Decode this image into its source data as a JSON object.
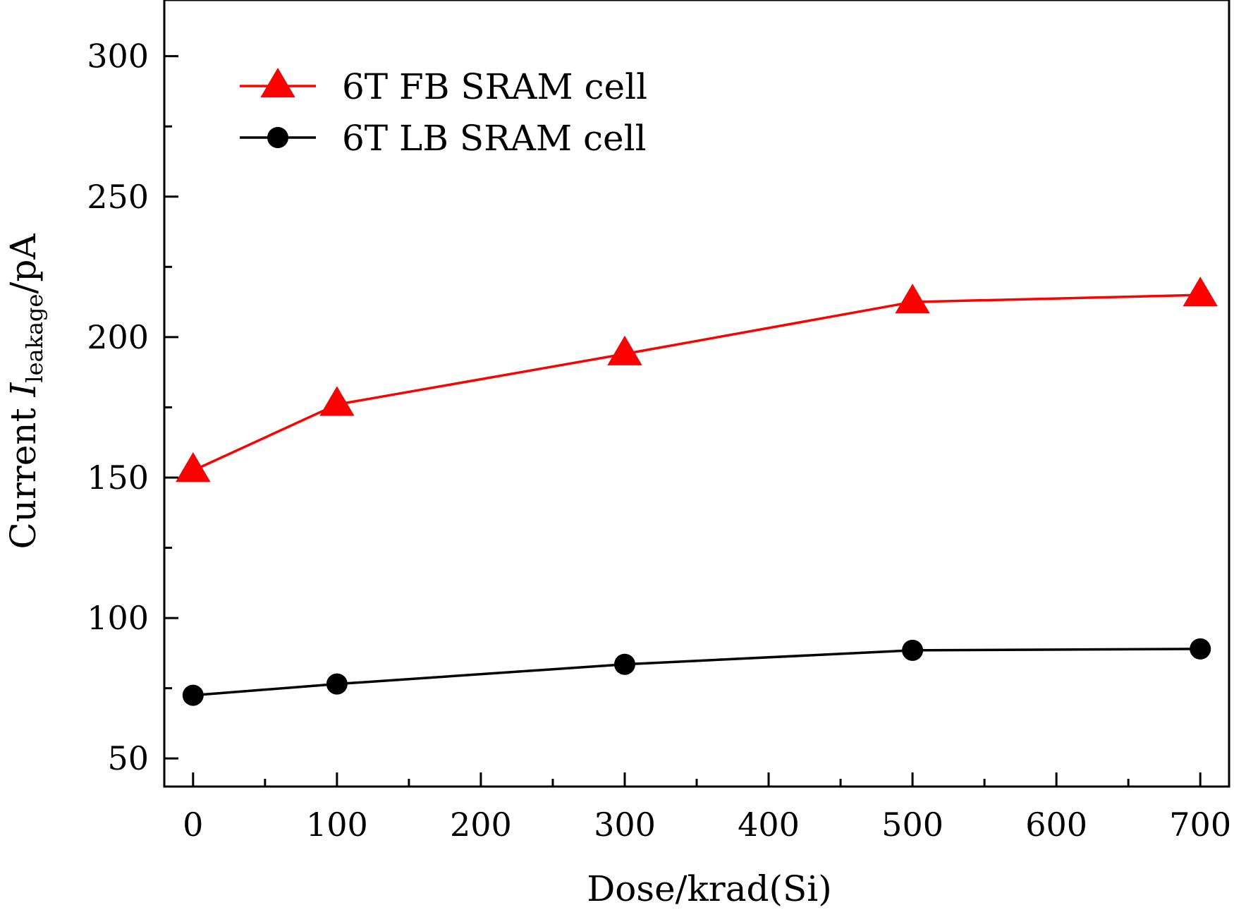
{
  "chart_data": {
    "type": "line",
    "title": "",
    "xlabel": "Dose/krad(Si)",
    "ylabel": {
      "prefix": "Current ",
      "symbol": "I",
      "subscript": "leakage",
      "suffix": "/pA"
    },
    "x_ticks": [
      0,
      100,
      200,
      300,
      400,
      500,
      600,
      700
    ],
    "x_tick_labels": [
      "0",
      "100",
      "200",
      "300",
      "400",
      "500",
      "600",
      "700"
    ],
    "y_ticks": [
      50,
      100,
      150,
      200,
      250,
      300
    ],
    "y_tick_labels": [
      "50",
      "100",
      "150",
      "200",
      "250",
      "300"
    ],
    "xlim": [
      -20,
      720
    ],
    "ylim": [
      40,
      320
    ],
    "grid": false,
    "legend_position": "top-left",
    "series": [
      {
        "name": "6T FB SRAM cell",
        "marker": "triangle",
        "color": "#ff0000",
        "x": [
          0,
          100,
          300,
          500,
          700
        ],
        "values": [
          152.5,
          176,
          194,
          212.5,
          215
        ]
      },
      {
        "name": "6T LB SRAM cell",
        "marker": "circle",
        "color": "#000000",
        "x": [
          0,
          100,
          300,
          500,
          700
        ],
        "values": [
          72.5,
          76.5,
          83.5,
          88.5,
          89
        ]
      }
    ]
  }
}
